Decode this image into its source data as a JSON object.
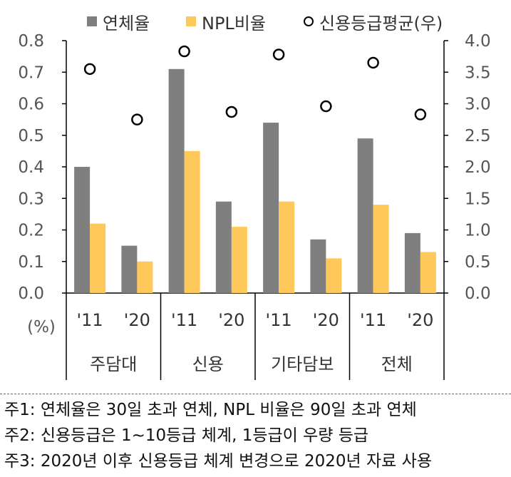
{
  "chart_data": {
    "type": "bar",
    "categories": [
      "'11",
      "'20",
      "'11",
      "'20",
      "'11",
      "'20",
      "'11",
      "'20"
    ],
    "groups": [
      "주담대",
      "신용",
      "기타담보",
      "전체"
    ],
    "unit_label": "(%)",
    "series": [
      {
        "name": "연체율",
        "color": "#7f7f7f",
        "axis": "left",
        "kind": "bar",
        "values": [
          0.4,
          0.15,
          0.71,
          0.29,
          0.54,
          0.17,
          0.49,
          0.19
        ]
      },
      {
        "name": "NPL비율",
        "color": "#ffc85a",
        "axis": "left",
        "kind": "bar",
        "values": [
          0.22,
          0.1,
          0.45,
          0.21,
          0.29,
          0.11,
          0.28,
          0.13
        ]
      },
      {
        "name": "신용등급평균(우)",
        "color": "#000000",
        "axis": "right",
        "kind": "scatter",
        "values": [
          3.55,
          2.75,
          3.83,
          2.87,
          3.78,
          2.96,
          3.65,
          2.83
        ]
      }
    ],
    "left_ticks": [
      "0.0",
      "0.1",
      "0.2",
      "0.3",
      "0.4",
      "0.5",
      "0.6",
      "0.7",
      "0.8"
    ],
    "right_ticks": [
      "0.0",
      "0.5",
      "1.0",
      "1.5",
      "2.0",
      "2.5",
      "3.0",
      "3.5",
      "4.0"
    ],
    "ylim_left": [
      0,
      0.8
    ],
    "ylim_right": [
      0,
      4.0
    ],
    "legend_position": "top",
    "grid": false
  },
  "notes": [
    "주1: 연체율은 30일 초과 연체, NPL 비율은 90일 초과 연체",
    "주2: 신용등급은 1~10등급 체계, 1등급이 우량 등급",
    "주3: 2020년 이후 신용등급 체계 변경으로 2020년 자료 사용"
  ]
}
